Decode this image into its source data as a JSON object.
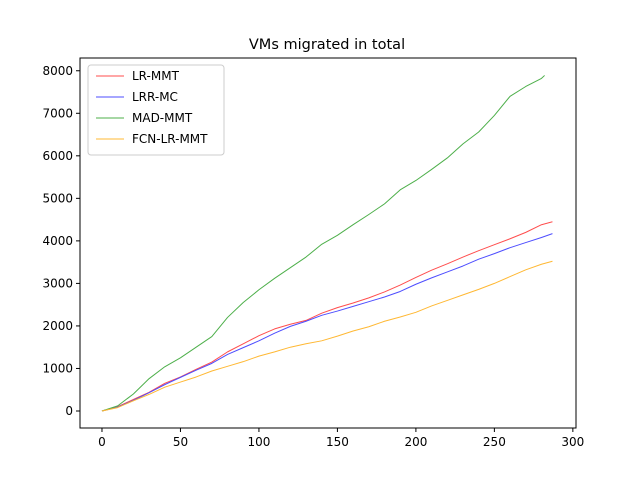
{
  "chart_data": {
    "type": "line",
    "title": "VMs migrated in total",
    "xlabel": "",
    "ylabel": "",
    "xlim": [
      -14,
      302
    ],
    "ylim": [
      -400,
      8300
    ],
    "x_ticks": [
      0,
      50,
      100,
      150,
      200,
      250,
      300
    ],
    "y_ticks": [
      0,
      1000,
      2000,
      3000,
      4000,
      5000,
      6000,
      7000,
      8000
    ],
    "grid": false,
    "legend_position": "top-left",
    "series": [
      {
        "name": "LR-MMT",
        "color": "#ff4d4d",
        "x": [
          0,
          10,
          20,
          30,
          40,
          50,
          60,
          70,
          80,
          90,
          100,
          110,
          120,
          130,
          140,
          150,
          160,
          170,
          180,
          190,
          200,
          210,
          220,
          230,
          240,
          250,
          260,
          270,
          280,
          287
        ],
        "y": [
          0,
          100,
          270,
          440,
          650,
          800,
          980,
          1150,
          1390,
          1580,
          1770,
          1930,
          2040,
          2130,
          2300,
          2430,
          2540,
          2660,
          2800,
          2960,
          3140,
          3310,
          3460,
          3620,
          3770,
          3910,
          4050,
          4200,
          4380,
          4450
        ]
      },
      {
        "name": "LRR-MC",
        "color": "#4d4dff",
        "x": [
          0,
          10,
          20,
          30,
          40,
          50,
          60,
          70,
          80,
          90,
          100,
          110,
          120,
          130,
          140,
          150,
          160,
          170,
          180,
          190,
          200,
          210,
          220,
          230,
          240,
          250,
          260,
          270,
          280,
          287
        ],
        "y": [
          0,
          90,
          250,
          430,
          620,
          790,
          960,
          1120,
          1330,
          1490,
          1650,
          1830,
          1990,
          2110,
          2250,
          2350,
          2460,
          2570,
          2680,
          2810,
          2980,
          3130,
          3270,
          3410,
          3570,
          3700,
          3840,
          3960,
          4080,
          4170
        ]
      },
      {
        "name": "MAD-MMT",
        "color": "#4daf4a",
        "x": [
          0,
          10,
          20,
          30,
          40,
          50,
          60,
          70,
          80,
          90,
          100,
          110,
          120,
          130,
          140,
          150,
          160,
          170,
          180,
          190,
          200,
          210,
          220,
          230,
          240,
          250,
          260,
          270,
          280,
          282
        ],
        "y": [
          0,
          120,
          400,
          760,
          1040,
          1250,
          1500,
          1750,
          2200,
          2550,
          2850,
          3120,
          3370,
          3620,
          3920,
          4130,
          4380,
          4620,
          4870,
          5200,
          5420,
          5680,
          5950,
          6280,
          6560,
          6950,
          7400,
          7630,
          7820,
          7890
        ]
      },
      {
        "name": "FCN-LR-MMT",
        "color": "#ffb833",
        "x": [
          0,
          10,
          20,
          30,
          40,
          50,
          60,
          70,
          80,
          90,
          100,
          110,
          120,
          130,
          140,
          150,
          160,
          170,
          180,
          190,
          200,
          210,
          220,
          230,
          240,
          250,
          260,
          270,
          280,
          287
        ],
        "y": [
          0,
          80,
          240,
          390,
          560,
          680,
          800,
          940,
          1050,
          1160,
          1290,
          1390,
          1500,
          1580,
          1650,
          1760,
          1880,
          1980,
          2110,
          2210,
          2320,
          2470,
          2600,
          2730,
          2860,
          3000,
          3160,
          3320,
          3450,
          3520
        ]
      }
    ]
  }
}
